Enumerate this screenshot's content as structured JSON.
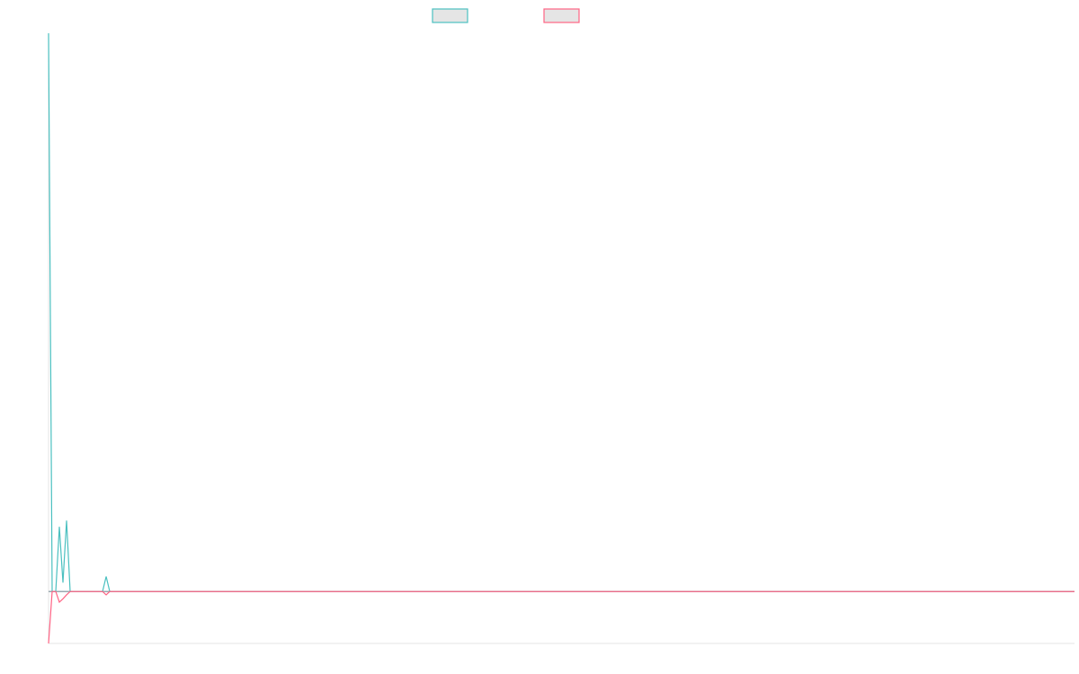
{
  "chart_data": {
    "type": "line",
    "title": "",
    "xlabel": "",
    "ylabel": "",
    "xlim": [
      0,
      285
    ],
    "ylim": [
      -9.3,
      100
    ],
    "grid": false,
    "legend": {
      "placement": "top-center",
      "entries": [
        "",
        ""
      ]
    },
    "series": [
      {
        "color": "#4bc0c0",
        "x": [
          0,
          1,
          2,
          3,
          4,
          5,
          6,
          15,
          16,
          17,
          285
        ],
        "y": [
          100,
          0,
          0,
          11.6,
          1.6,
          12.7,
          0,
          0,
          2.7,
          0,
          0
        ]
      },
      {
        "color": "#ff6384",
        "x": [
          0,
          1,
          2,
          3,
          4,
          5,
          6,
          15,
          16,
          17,
          285
        ],
        "y": [
          -9.3,
          0,
          0,
          -1.9,
          -1.3,
          -0.6,
          0,
          0,
          -0.6,
          0,
          0
        ]
      }
    ]
  }
}
